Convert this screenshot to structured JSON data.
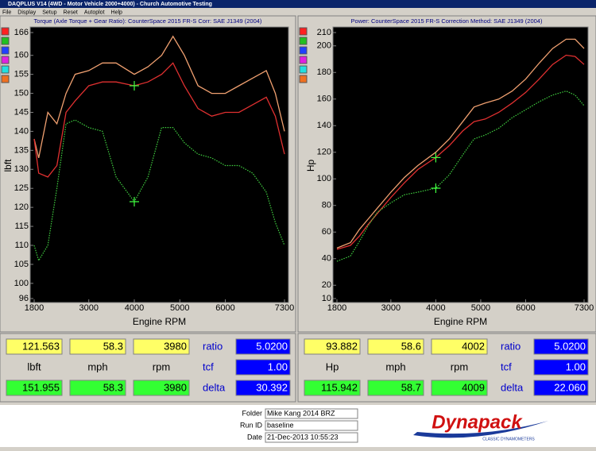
{
  "window": {
    "title": "DAQPLUS V14 (4WD - Motor Vehicle 2000+4000) - Church Automotive Testing",
    "menu": [
      "File",
      "Display",
      "Setup",
      "Reset",
      "Autoplot",
      "Help"
    ],
    "swatches": [
      "#ff2020",
      "#20c020",
      "#2040ff",
      "#e020e0",
      "#20e0e0",
      "#f07020"
    ]
  },
  "chart_data": [
    {
      "type": "line",
      "title": "Torque (Axle Torque + Gear Ratio): CounterSpace 2015 FR-S Corr: SAE J1349 (2004)",
      "x_label": "Engine RPM",
      "y_label": "lbft",
      "x": [
        1800,
        1900,
        2100,
        2300,
        2500,
        2700,
        3000,
        3300,
        3600,
        4000,
        4300,
        4600,
        4850,
        5100,
        5400,
        5700,
        6000,
        6300,
        6600,
        6900,
        7100,
        7300
      ],
      "series": [
        {
          "color": "#f0a070",
          "style": "solid",
          "cursor": false,
          "values": [
            138,
            133,
            145,
            142,
            150,
            155,
            156,
            158,
            158,
            155,
            157,
            160,
            165,
            160,
            152,
            150,
            150,
            152,
            154,
            156,
            150,
            140
          ]
        },
        {
          "color": "#e03030",
          "style": "solid",
          "cursor": true,
          "values": [
            138,
            129,
            128,
            131,
            145,
            148,
            152,
            153,
            153,
            152,
            153,
            155,
            158,
            152,
            146,
            144,
            145,
            145,
            147,
            149,
            144,
            134
          ]
        },
        {
          "color": "#40d040",
          "style": "dotted",
          "cursor": true,
          "values": [
            110,
            106,
            110,
            125,
            142,
            143,
            141,
            140,
            128,
            121.5,
            128,
            141,
            141,
            137,
            134,
            133,
            131,
            131,
            129,
            124,
            116,
            110
          ]
        }
      ],
      "cursor_x": 4000,
      "xlim": [
        1800,
        7300
      ],
      "xticks": [
        1800,
        3000,
        4000,
        5000,
        6000,
        7300
      ],
      "ylim": [
        96,
        166
      ],
      "yticks": [
        96,
        100,
        105,
        110,
        115,
        120,
        125,
        130,
        135,
        140,
        145,
        150,
        155,
        160,
        166
      ],
      "grid": false
    },
    {
      "type": "line",
      "title": "Power: CounterSpace 2015 FR-S Correction Method: SAE J1349 (2004)",
      "x_label": "Engine RPM",
      "y_label": "Hp",
      "x": [
        1800,
        2100,
        2300,
        2500,
        2700,
        3000,
        3300,
        3600,
        4000,
        4300,
        4600,
        4850,
        5100,
        5400,
        5700,
        6000,
        6300,
        6600,
        6900,
        7100,
        7300
      ],
      "series": [
        {
          "color": "#f0a070",
          "style": "solid",
          "cursor": false,
          "values": [
            48,
            52,
            62,
            70,
            78,
            90,
            101,
            110,
            120,
            130,
            143,
            154,
            157,
            160,
            166,
            175,
            187,
            198,
            205,
            205,
            198
          ]
        },
        {
          "color": "#e03030",
          "style": "solid",
          "cursor": true,
          "values": [
            47,
            50,
            57,
            66,
            74,
            86,
            97,
            107,
            116,
            125,
            136,
            143,
            145,
            150,
            157,
            165,
            175,
            186,
            193,
            192,
            186
          ]
        },
        {
          "color": "#40d040",
          "style": "dotted",
          "cursor": true,
          "values": [
            38,
            42,
            53,
            65,
            75,
            82,
            88,
            90,
            93,
            103,
            118,
            130,
            133,
            138,
            146,
            152,
            158,
            163,
            166,
            163,
            155
          ]
        }
      ],
      "cursor_x": 4000,
      "xlim": [
        1800,
        7300
      ],
      "xticks": [
        1800,
        3000,
        4000,
        5000,
        6000,
        7300
      ],
      "ylim": [
        10,
        210
      ],
      "yticks": [
        10,
        20,
        40,
        60,
        80,
        100,
        120,
        140,
        160,
        180,
        200,
        210
      ],
      "grid": false
    }
  ],
  "readouts": [
    {
      "top": [
        "121.563",
        "58.3",
        "3980"
      ],
      "units": [
        "lbft",
        "mph",
        "rpm"
      ],
      "bottom": [
        "151.955",
        "58.3",
        "3980"
      ],
      "labels": [
        "ratio",
        "tcf",
        "delta"
      ],
      "values": [
        "5.0200",
        "1.00",
        "30.392"
      ]
    },
    {
      "top": [
        "93.882",
        "58.6",
        "4002"
      ],
      "units": [
        "Hp",
        "mph",
        "rpm"
      ],
      "bottom": [
        "115.942",
        "58.7",
        "4009"
      ],
      "labels": [
        "ratio",
        "tcf",
        "delta"
      ],
      "values": [
        "5.0200",
        "1.00",
        "22.060"
      ]
    }
  ],
  "footer": {
    "fields": [
      {
        "label": "Folder",
        "value": "Mike Kang 2014 BRZ"
      },
      {
        "label": "Run ID",
        "value": "baseline"
      },
      {
        "label": "Date",
        "value": "21-Dec-2013 10:55:23"
      }
    ],
    "logo": "Dynapack",
    "logo_sub": "CLASSIC DYNAMOMETERS"
  }
}
